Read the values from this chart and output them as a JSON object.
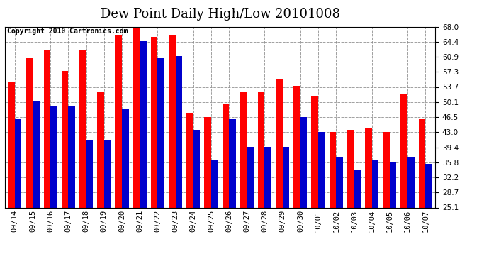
{
  "title": "Dew Point Daily High/Low 20101008",
  "copyright": "Copyright 2010 Cartronics.com",
  "dates": [
    "09/14",
    "09/15",
    "09/16",
    "09/17",
    "09/18",
    "09/19",
    "09/20",
    "09/21",
    "09/22",
    "09/23",
    "09/24",
    "09/25",
    "09/26",
    "09/27",
    "09/28",
    "09/29",
    "09/30",
    "10/01",
    "10/02",
    "10/03",
    "10/04",
    "10/05",
    "10/06",
    "10/07"
  ],
  "highs": [
    55.0,
    60.5,
    62.5,
    57.5,
    62.5,
    52.5,
    66.0,
    68.0,
    65.5,
    66.0,
    47.5,
    46.5,
    49.5,
    52.5,
    52.5,
    55.5,
    54.0,
    51.5,
    43.0,
    43.5,
    44.0,
    43.0,
    52.0,
    46.0
  ],
  "lows": [
    46.0,
    50.5,
    49.0,
    49.0,
    41.0,
    41.0,
    48.5,
    64.5,
    60.5,
    61.0,
    43.5,
    36.5,
    46.0,
    39.5,
    39.5,
    39.5,
    46.5,
    43.0,
    37.0,
    34.0,
    36.5,
    36.0,
    37.0,
    35.5
  ],
  "high_color": "#ff0000",
  "low_color": "#0000cc",
  "background_color": "#ffffff",
  "grid_color": "#888888",
  "ylim_low": 25.1,
  "ylim_high": 68.0,
  "yticks": [
    25.1,
    28.7,
    32.2,
    35.8,
    39.4,
    43.0,
    46.5,
    50.1,
    53.7,
    57.3,
    60.9,
    64.4,
    68.0
  ],
  "title_fontsize": 13,
  "copyright_fontsize": 7,
  "tick_fontsize": 7.5,
  "bar_width": 0.38
}
